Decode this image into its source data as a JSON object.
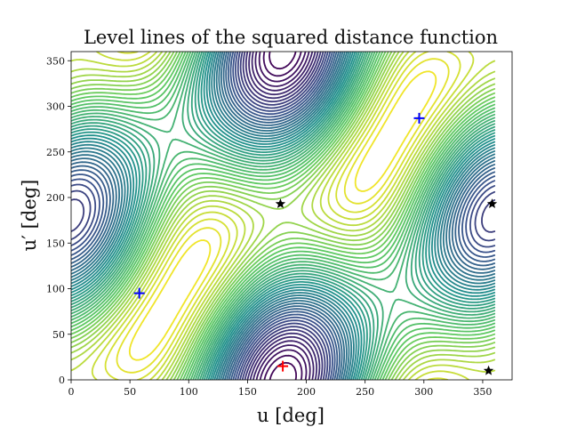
{
  "chart_data": {
    "type": "contour",
    "title": "Level lines of the squared distance function",
    "xlabel": "u [deg]",
    "ylabel": "u′ [deg]",
    "xlim": [
      0,
      375
    ],
    "ylim": [
      0,
      360
    ],
    "x_ticks": [
      0,
      50,
      100,
      150,
      200,
      250,
      300,
      350
    ],
    "y_ticks": [
      0,
      50,
      100,
      150,
      200,
      250,
      300,
      350
    ],
    "colormap": [
      "#440154",
      "#3b528b",
      "#21918c",
      "#5ec962",
      "#fde725"
    ],
    "levels": 48,
    "blue_plus_points": [
      {
        "u": 58,
        "u_prime": 95
      },
      {
        "u": 296,
        "u_prime": 287
      }
    ],
    "red_plus_points": [
      {
        "u": 180,
        "u_prime": 15
      }
    ],
    "star_points": [
      {
        "u": 178,
        "u_prime": 193
      },
      {
        "u": 358,
        "u_prime": 193
      },
      {
        "u": 355,
        "u_prime": 10
      }
    ],
    "colors": {
      "blue_plus": "#0000ff",
      "red_plus": "#ff0000",
      "star": "#000000"
    }
  }
}
